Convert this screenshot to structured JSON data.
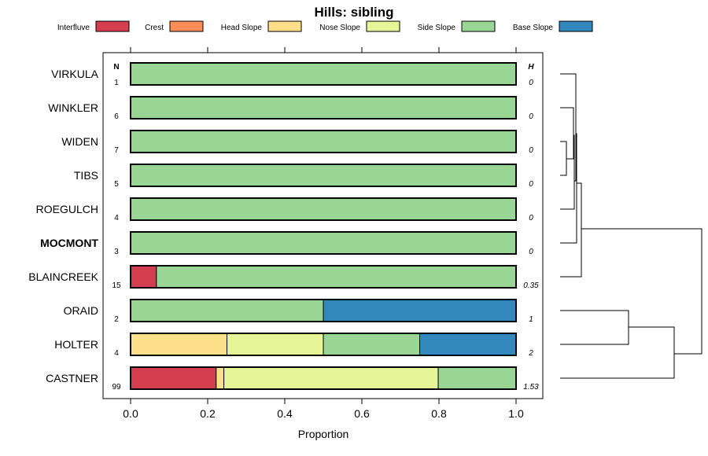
{
  "chart_data": {
    "type": "bar",
    "orientation": "horizontal",
    "stacked": true,
    "title": "Hills: sibling",
    "xlabel": "Proportion",
    "xlim": [
      0,
      1
    ],
    "xticks": [
      "0.0",
      "0.2",
      "0.4",
      "0.6",
      "0.8",
      "1.0"
    ],
    "legend_position": "top",
    "column_headers": {
      "n": "N",
      "h": "H"
    },
    "categories_legend": [
      {
        "name": "Interfluve",
        "color": "#d53e4f"
      },
      {
        "name": "Crest",
        "color": "#fc8d59"
      },
      {
        "name": "Head Slope",
        "color": "#fee08b"
      },
      {
        "name": "Nose Slope",
        "color": "#e6f598"
      },
      {
        "name": "Side Slope",
        "color": "#99d594"
      },
      {
        "name": "Base Slope",
        "color": "#3288bd"
      }
    ],
    "rows": [
      {
        "label": "VIRKULA",
        "bold": false,
        "n": "1",
        "h": "0",
        "values": [
          0,
          0,
          0,
          0,
          1,
          0
        ]
      },
      {
        "label": "WINKLER",
        "bold": false,
        "n": "6",
        "h": "0",
        "values": [
          0,
          0,
          0,
          0,
          1,
          0
        ]
      },
      {
        "label": "WIDEN",
        "bold": false,
        "n": "7",
        "h": "0",
        "values": [
          0,
          0,
          0,
          0,
          1,
          0
        ]
      },
      {
        "label": "TIBS",
        "bold": false,
        "n": "5",
        "h": "0",
        "values": [
          0,
          0,
          0,
          0,
          1,
          0
        ]
      },
      {
        "label": "ROEGULCH",
        "bold": false,
        "n": "4",
        "h": "0",
        "values": [
          0,
          0,
          0,
          0,
          1,
          0
        ]
      },
      {
        "label": "MOCMONT",
        "bold": true,
        "n": "3",
        "h": "0",
        "values": [
          0,
          0,
          0,
          0,
          1,
          0
        ]
      },
      {
        "label": "BLAINCREEK",
        "bold": false,
        "n": "15",
        "h": "0.35",
        "values": [
          0.067,
          0,
          0,
          0,
          0.933,
          0
        ]
      },
      {
        "label": "ORAID",
        "bold": false,
        "n": "2",
        "h": "1",
        "values": [
          0,
          0,
          0,
          0,
          0.5,
          0.5
        ]
      },
      {
        "label": "HOLTER",
        "bold": false,
        "n": "4",
        "h": "2",
        "values": [
          0,
          0,
          0.25,
          0.25,
          0.25,
          0.25
        ]
      },
      {
        "label": "CASTNER",
        "bold": false,
        "n": "99",
        "h": "1.53",
        "values": [
          0.222,
          0,
          0.02,
          0.556,
          0.202,
          0
        ]
      }
    ],
    "dendrogram": "hierarchical clustering of rows, drawn at right"
  }
}
